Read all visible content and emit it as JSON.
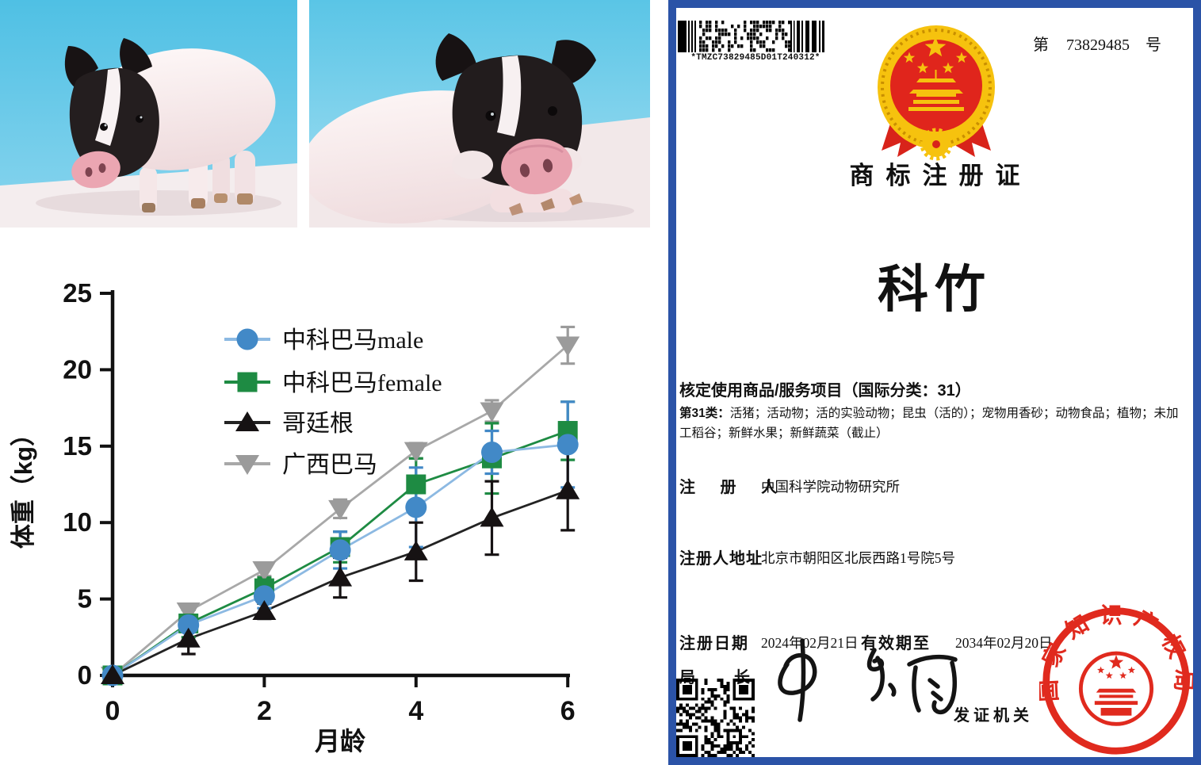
{
  "chart_data": {
    "type": "line",
    "title": "",
    "xlabel": "月龄",
    "ylabel": "体重（kg）",
    "x": [
      0,
      1,
      2,
      3,
      4,
      5,
      6
    ],
    "xticks": [
      0,
      2,
      4,
      6
    ],
    "yticks": [
      0,
      5,
      10,
      15,
      20,
      25
    ],
    "xlim": [
      0,
      6
    ],
    "ylim": [
      0,
      25
    ],
    "grid": false,
    "legend_position": "upper-left-inside",
    "series": [
      {
        "name": "中科巴马male",
        "marker": "circle",
        "color": "#4289c7",
        "line_color": "#8cb9e2",
        "values": [
          0,
          3.3,
          5.2,
          8.2,
          11.0,
          14.6,
          15.1
        ],
        "errors": [
          0,
          1.1,
          0.8,
          1.2,
          2.6,
          1.4,
          2.8
        ]
      },
      {
        "name": "中科巴马female",
        "marker": "square",
        "color": "#1e8b43",
        "line_color": "#1e8b43",
        "values": [
          0,
          3.4,
          5.7,
          8.4,
          12.5,
          14.2,
          16.0
        ],
        "errors": [
          0,
          0.9,
          0.7,
          1.0,
          1.7,
          2.3,
          1.9
        ]
      },
      {
        "name": "哥廷根",
        "marker": "triangle-up",
        "color": "#161213",
        "line_color": "#232323",
        "values": [
          0,
          2.4,
          4.2,
          6.4,
          8.1,
          10.3,
          12.1
        ],
        "errors": [
          0,
          1.0,
          0.5,
          1.3,
          1.9,
          2.4,
          2.6
        ]
      },
      {
        "name": "广西巴马",
        "marker": "triangle-down",
        "color": "#9b9b9b",
        "line_color": "#a8a8a8",
        "values": [
          0,
          4.2,
          6.9,
          10.9,
          14.7,
          17.3,
          21.6
        ],
        "errors": [
          0,
          0.4,
          0.4,
          0.6,
          0.5,
          0.7,
          1.2
        ]
      }
    ]
  },
  "certificate": {
    "border_color": "#2b53a7",
    "accent_red": "#e02a1e",
    "gold": "#f6c20e",
    "barcode_text": "*TMZC73829485D01T240312*",
    "number_prefix": "第",
    "number": "73829485",
    "number_suffix": "号",
    "title": "商标注册证",
    "trademark": "科竹",
    "goods_heading": "核定使用商品/服务项目（国际分类：31）",
    "goods_class_label": "第31类：",
    "goods_items": "活猪；活动物；活的实验动物；昆虫（活的）；宠物用香砂；动物食品；植物；未加工稻谷；新鲜水果；新鲜蔬菜（截止）",
    "registrant_label": "注 册 人",
    "registrant": "中国科学院动物研究所",
    "address_label": "注册人地址",
    "address": "北京市朝阳区北辰西路1号院5号",
    "reg_date_label": "注册日期",
    "reg_date": "2024年02月21日",
    "valid_until_label": "有效期至",
    "valid_until": "2034年02月20日",
    "director_label_left": "局",
    "director_label_right": "长",
    "issuer_label": "发证机关",
    "seal_text": "国家知识产权局"
  }
}
